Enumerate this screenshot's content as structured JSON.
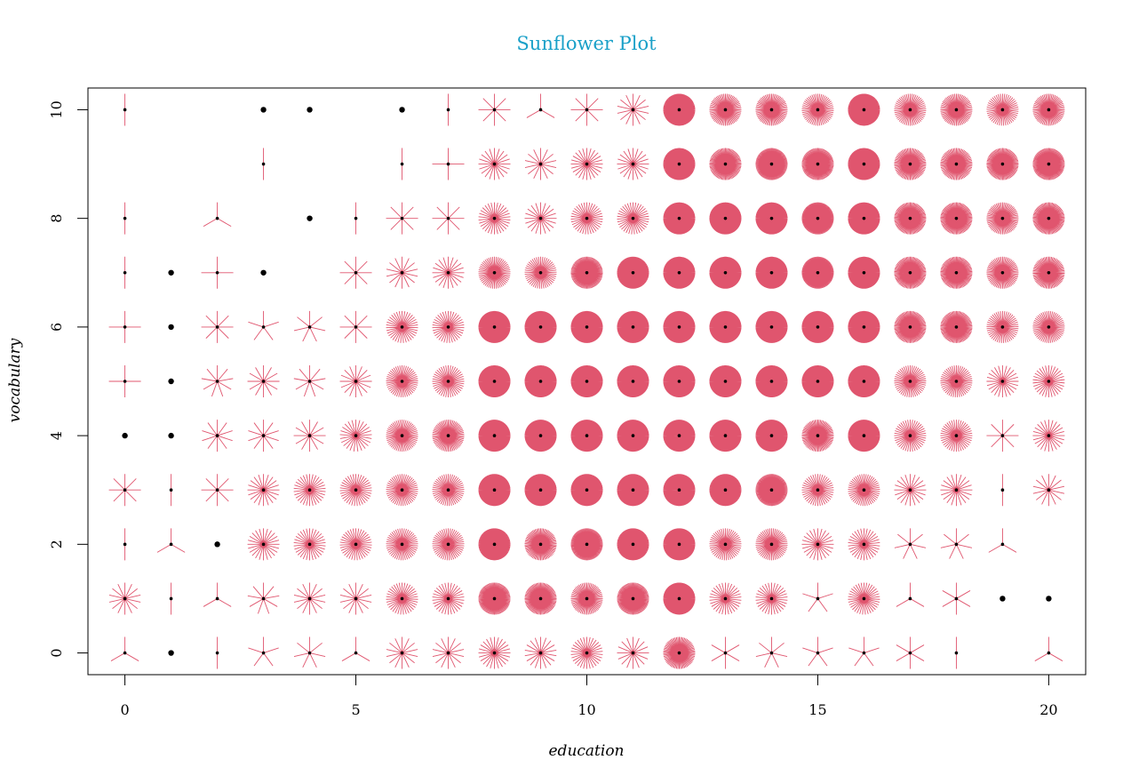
{
  "chart_data": {
    "type": "scatter",
    "subtype": "sunflower",
    "title": "Sunflower Plot",
    "xlabel": "education",
    "ylabel": "vocabulary",
    "xlim": [
      -0.8,
      20.8
    ],
    "ylim": [
      -0.4,
      10.4
    ],
    "x_ticks": [
      0,
      5,
      10,
      15,
      20
    ],
    "y_ticks": [
      0,
      2,
      4,
      6,
      8,
      10
    ],
    "petal_color": "#e0556e",
    "center_color": "#000000",
    "title_color": "#1aa0c8",
    "legend": "none",
    "grid": false,
    "points": [
      {
        "x": 0,
        "y": 10,
        "n": 2
      },
      {
        "x": 3,
        "y": 10,
        "n": 1
      },
      {
        "x": 4,
        "y": 10,
        "n": 1
      },
      {
        "x": 6,
        "y": 10,
        "n": 1
      },
      {
        "x": 7,
        "y": 10,
        "n": 2
      },
      {
        "x": 8,
        "y": 10,
        "n": 8
      },
      {
        "x": 9,
        "y": 10,
        "n": 3
      },
      {
        "x": 10,
        "y": 10,
        "n": 8
      },
      {
        "x": 11,
        "y": 10,
        "n": 14
      },
      {
        "x": 12,
        "y": 10,
        "n": 120
      },
      {
        "x": 13,
        "y": 10,
        "n": 60
      },
      {
        "x": 14,
        "y": 10,
        "n": 60
      },
      {
        "x": 15,
        "y": 10,
        "n": 50
      },
      {
        "x": 16,
        "y": 10,
        "n": 120
      },
      {
        "x": 17,
        "y": 10,
        "n": 50
      },
      {
        "x": 18,
        "y": 10,
        "n": 60
      },
      {
        "x": 19,
        "y": 10,
        "n": 45
      },
      {
        "x": 20,
        "y": 10,
        "n": 60
      },
      {
        "x": 3,
        "y": 9,
        "n": 2
      },
      {
        "x": 6,
        "y": 9,
        "n": 2
      },
      {
        "x": 7,
        "y": 9,
        "n": 4
      },
      {
        "x": 8,
        "y": 9,
        "n": 20
      },
      {
        "x": 9,
        "y": 9,
        "n": 14
      },
      {
        "x": 10,
        "y": 9,
        "n": 24
      },
      {
        "x": 11,
        "y": 9,
        "n": 20
      },
      {
        "x": 12,
        "y": 9,
        "n": 120
      },
      {
        "x": 13,
        "y": 9,
        "n": 80
      },
      {
        "x": 14,
        "y": 9,
        "n": 100
      },
      {
        "x": 15,
        "y": 9,
        "n": 90
      },
      {
        "x": 16,
        "y": 9,
        "n": 120
      },
      {
        "x": 17,
        "y": 9,
        "n": 70
      },
      {
        "x": 18,
        "y": 9,
        "n": 70
      },
      {
        "x": 19,
        "y": 9,
        "n": 80
      },
      {
        "x": 20,
        "y": 9,
        "n": 90
      },
      {
        "x": 0,
        "y": 8,
        "n": 2
      },
      {
        "x": 2,
        "y": 8,
        "n": 3
      },
      {
        "x": 4,
        "y": 8,
        "n": 1
      },
      {
        "x": 5,
        "y": 8,
        "n": 2
      },
      {
        "x": 6,
        "y": 8,
        "n": 8
      },
      {
        "x": 7,
        "y": 8,
        "n": 8
      },
      {
        "x": 8,
        "y": 8,
        "n": 30
      },
      {
        "x": 9,
        "y": 8,
        "n": 20
      },
      {
        "x": 10,
        "y": 8,
        "n": 35
      },
      {
        "x": 11,
        "y": 8,
        "n": 35
      },
      {
        "x": 12,
        "y": 8,
        "n": 150
      },
      {
        "x": 13,
        "y": 8,
        "n": 140
      },
      {
        "x": 14,
        "y": 8,
        "n": 150
      },
      {
        "x": 15,
        "y": 8,
        "n": 110
      },
      {
        "x": 16,
        "y": 8,
        "n": 150
      },
      {
        "x": 17,
        "y": 8,
        "n": 80
      },
      {
        "x": 18,
        "y": 8,
        "n": 80
      },
      {
        "x": 19,
        "y": 8,
        "n": 60
      },
      {
        "x": 20,
        "y": 8,
        "n": 80
      },
      {
        "x": 0,
        "y": 7,
        "n": 2
      },
      {
        "x": 1,
        "y": 7,
        "n": 1
      },
      {
        "x": 2,
        "y": 7,
        "n": 4
      },
      {
        "x": 3,
        "y": 7,
        "n": 1
      },
      {
        "x": 5,
        "y": 7,
        "n": 8
      },
      {
        "x": 6,
        "y": 7,
        "n": 14
      },
      {
        "x": 7,
        "y": 7,
        "n": 20
      },
      {
        "x": 8,
        "y": 7,
        "n": 50
      },
      {
        "x": 9,
        "y": 7,
        "n": 45
      },
      {
        "x": 10,
        "y": 7,
        "n": 90
      },
      {
        "x": 11,
        "y": 7,
        "n": 120
      },
      {
        "x": 12,
        "y": 7,
        "n": 150
      },
      {
        "x": 13,
        "y": 7,
        "n": 150
      },
      {
        "x": 14,
        "y": 7,
        "n": 150
      },
      {
        "x": 15,
        "y": 7,
        "n": 110
      },
      {
        "x": 16,
        "y": 7,
        "n": 150
      },
      {
        "x": 17,
        "y": 7,
        "n": 80
      },
      {
        "x": 18,
        "y": 7,
        "n": 80
      },
      {
        "x": 19,
        "y": 7,
        "n": 60
      },
      {
        "x": 20,
        "y": 7,
        "n": 70
      },
      {
        "x": 0,
        "y": 6,
        "n": 4
      },
      {
        "x": 1,
        "y": 6,
        "n": 1
      },
      {
        "x": 2,
        "y": 6,
        "n": 8
      },
      {
        "x": 3,
        "y": 6,
        "n": 5
      },
      {
        "x": 4,
        "y": 6,
        "n": 7
      },
      {
        "x": 5,
        "y": 6,
        "n": 8
      },
      {
        "x": 6,
        "y": 6,
        "n": 35
      },
      {
        "x": 7,
        "y": 6,
        "n": 35
      },
      {
        "x": 8,
        "y": 6,
        "n": 150
      },
      {
        "x": 9,
        "y": 6,
        "n": 150
      },
      {
        "x": 10,
        "y": 6,
        "n": 150
      },
      {
        "x": 11,
        "y": 6,
        "n": 150
      },
      {
        "x": 12,
        "y": 6,
        "n": 150
      },
      {
        "x": 13,
        "y": 6,
        "n": 150
      },
      {
        "x": 14,
        "y": 6,
        "n": 150
      },
      {
        "x": 15,
        "y": 6,
        "n": 150
      },
      {
        "x": 16,
        "y": 6,
        "n": 150
      },
      {
        "x": 17,
        "y": 6,
        "n": 80
      },
      {
        "x": 18,
        "y": 6,
        "n": 80
      },
      {
        "x": 19,
        "y": 6,
        "n": 45
      },
      {
        "x": 20,
        "y": 6,
        "n": 50
      },
      {
        "x": 0,
        "y": 5,
        "n": 4
      },
      {
        "x": 1,
        "y": 5,
        "n": 1
      },
      {
        "x": 2,
        "y": 5,
        "n": 9
      },
      {
        "x": 3,
        "y": 5,
        "n": 12
      },
      {
        "x": 4,
        "y": 5,
        "n": 9
      },
      {
        "x": 5,
        "y": 5,
        "n": 16
      },
      {
        "x": 6,
        "y": 5,
        "n": 45
      },
      {
        "x": 7,
        "y": 5,
        "n": 40
      },
      {
        "x": 8,
        "y": 5,
        "n": 150
      },
      {
        "x": 9,
        "y": 5,
        "n": 150
      },
      {
        "x": 10,
        "y": 5,
        "n": 150
      },
      {
        "x": 11,
        "y": 5,
        "n": 150
      },
      {
        "x": 12,
        "y": 5,
        "n": 150
      },
      {
        "x": 13,
        "y": 5,
        "n": 150
      },
      {
        "x": 14,
        "y": 5,
        "n": 150
      },
      {
        "x": 15,
        "y": 5,
        "n": 150
      },
      {
        "x": 16,
        "y": 5,
        "n": 150
      },
      {
        "x": 17,
        "y": 5,
        "n": 45
      },
      {
        "x": 18,
        "y": 5,
        "n": 45
      },
      {
        "x": 19,
        "y": 5,
        "n": 24
      },
      {
        "x": 20,
        "y": 5,
        "n": 30
      },
      {
        "x": 0,
        "y": 4,
        "n": 1
      },
      {
        "x": 1,
        "y": 4,
        "n": 1
      },
      {
        "x": 2,
        "y": 4,
        "n": 10
      },
      {
        "x": 3,
        "y": 4,
        "n": 10
      },
      {
        "x": 4,
        "y": 4,
        "n": 12
      },
      {
        "x": 5,
        "y": 4,
        "n": 25
      },
      {
        "x": 6,
        "y": 4,
        "n": 50
      },
      {
        "x": 7,
        "y": 4,
        "n": 60
      },
      {
        "x": 8,
        "y": 4,
        "n": 150
      },
      {
        "x": 9,
        "y": 4,
        "n": 150
      },
      {
        "x": 10,
        "y": 4,
        "n": 150
      },
      {
        "x": 11,
        "y": 4,
        "n": 150
      },
      {
        "x": 12,
        "y": 4,
        "n": 150
      },
      {
        "x": 13,
        "y": 4,
        "n": 150
      },
      {
        "x": 14,
        "y": 4,
        "n": 150
      },
      {
        "x": 15,
        "y": 4,
        "n": 70
      },
      {
        "x": 16,
        "y": 4,
        "n": 150
      },
      {
        "x": 17,
        "y": 4,
        "n": 40
      },
      {
        "x": 18,
        "y": 4,
        "n": 40
      },
      {
        "x": 19,
        "y": 4,
        "n": 8
      },
      {
        "x": 20,
        "y": 4,
        "n": 24
      },
      {
        "x": 0,
        "y": 3,
        "n": 8
      },
      {
        "x": 1,
        "y": 3,
        "n": 2
      },
      {
        "x": 2,
        "y": 3,
        "n": 8
      },
      {
        "x": 3,
        "y": 3,
        "n": 20
      },
      {
        "x": 4,
        "y": 3,
        "n": 30
      },
      {
        "x": 5,
        "y": 3,
        "n": 35
      },
      {
        "x": 6,
        "y": 3,
        "n": 45
      },
      {
        "x": 7,
        "y": 3,
        "n": 45
      },
      {
        "x": 8,
        "y": 3,
        "n": 150
      },
      {
        "x": 9,
        "y": 3,
        "n": 150
      },
      {
        "x": 10,
        "y": 3,
        "n": 150
      },
      {
        "x": 11,
        "y": 3,
        "n": 150
      },
      {
        "x": 12,
        "y": 3,
        "n": 150
      },
      {
        "x": 13,
        "y": 3,
        "n": 120
      },
      {
        "x": 14,
        "y": 3,
        "n": 100
      },
      {
        "x": 15,
        "y": 3,
        "n": 40
      },
      {
        "x": 16,
        "y": 3,
        "n": 45
      },
      {
        "x": 17,
        "y": 3,
        "n": 20
      },
      {
        "x": 18,
        "y": 3,
        "n": 20
      },
      {
        "x": 19,
        "y": 3,
        "n": 2
      },
      {
        "x": 20,
        "y": 3,
        "n": 14
      },
      {
        "x": 0,
        "y": 2,
        "n": 2
      },
      {
        "x": 1,
        "y": 2,
        "n": 3
      },
      {
        "x": 2,
        "y": 2,
        "n": 1
      },
      {
        "x": 3,
        "y": 2,
        "n": 24
      },
      {
        "x": 4,
        "y": 2,
        "n": 30
      },
      {
        "x": 5,
        "y": 2,
        "n": 35
      },
      {
        "x": 6,
        "y": 2,
        "n": 45
      },
      {
        "x": 7,
        "y": 2,
        "n": 45
      },
      {
        "x": 8,
        "y": 2,
        "n": 120
      },
      {
        "x": 9,
        "y": 2,
        "n": 70
      },
      {
        "x": 10,
        "y": 2,
        "n": 100
      },
      {
        "x": 11,
        "y": 2,
        "n": 120
      },
      {
        "x": 12,
        "y": 2,
        "n": 150
      },
      {
        "x": 13,
        "y": 2,
        "n": 45
      },
      {
        "x": 14,
        "y": 2,
        "n": 50
      },
      {
        "x": 15,
        "y": 2,
        "n": 24
      },
      {
        "x": 16,
        "y": 2,
        "n": 30
      },
      {
        "x": 17,
        "y": 2,
        "n": 7
      },
      {
        "x": 18,
        "y": 2,
        "n": 7
      },
      {
        "x": 19,
        "y": 2,
        "n": 3
      },
      {
        "x": 0,
        "y": 1,
        "n": 14
      },
      {
        "x": 1,
        "y": 1,
        "n": 2
      },
      {
        "x": 2,
        "y": 1,
        "n": 3
      },
      {
        "x": 3,
        "y": 1,
        "n": 9
      },
      {
        "x": 4,
        "y": 1,
        "n": 14
      },
      {
        "x": 5,
        "y": 1,
        "n": 14
      },
      {
        "x": 6,
        "y": 1,
        "n": 35
      },
      {
        "x": 7,
        "y": 1,
        "n": 30
      },
      {
        "x": 8,
        "y": 1,
        "n": 90
      },
      {
        "x": 9,
        "y": 1,
        "n": 80
      },
      {
        "x": 10,
        "y": 1,
        "n": 60
      },
      {
        "x": 11,
        "y": 1,
        "n": 90
      },
      {
        "x": 12,
        "y": 1,
        "n": 150
      },
      {
        "x": 13,
        "y": 1,
        "n": 30
      },
      {
        "x": 14,
        "y": 1,
        "n": 30
      },
      {
        "x": 15,
        "y": 1,
        "n": 5
      },
      {
        "x": 16,
        "y": 1,
        "n": 35
      },
      {
        "x": 17,
        "y": 1,
        "n": 3
      },
      {
        "x": 18,
        "y": 1,
        "n": 6
      },
      {
        "x": 19,
        "y": 1,
        "n": 1
      },
      {
        "x": 20,
        "y": 1,
        "n": 1
      },
      {
        "x": 0,
        "y": 0,
        "n": 3
      },
      {
        "x": 1,
        "y": 0,
        "n": 1
      },
      {
        "x": 2,
        "y": 0,
        "n": 2
      },
      {
        "x": 3,
        "y": 0,
        "n": 5
      },
      {
        "x": 4,
        "y": 0,
        "n": 7
      },
      {
        "x": 5,
        "y": 0,
        "n": 3
      },
      {
        "x": 6,
        "y": 0,
        "n": 14
      },
      {
        "x": 7,
        "y": 0,
        "n": 14
      },
      {
        "x": 8,
        "y": 0,
        "n": 24
      },
      {
        "x": 9,
        "y": 0,
        "n": 18
      },
      {
        "x": 10,
        "y": 0,
        "n": 30
      },
      {
        "x": 11,
        "y": 0,
        "n": 16
      },
      {
        "x": 12,
        "y": 0,
        "n": 70
      },
      {
        "x": 13,
        "y": 0,
        "n": 6
      },
      {
        "x": 14,
        "y": 0,
        "n": 7
      },
      {
        "x": 15,
        "y": 0,
        "n": 5
      },
      {
        "x": 16,
        "y": 0,
        "n": 5
      },
      {
        "x": 17,
        "y": 0,
        "n": 6
      },
      {
        "x": 18,
        "y": 0,
        "n": 2
      },
      {
        "x": 20,
        "y": 0,
        "n": 3
      }
    ]
  }
}
